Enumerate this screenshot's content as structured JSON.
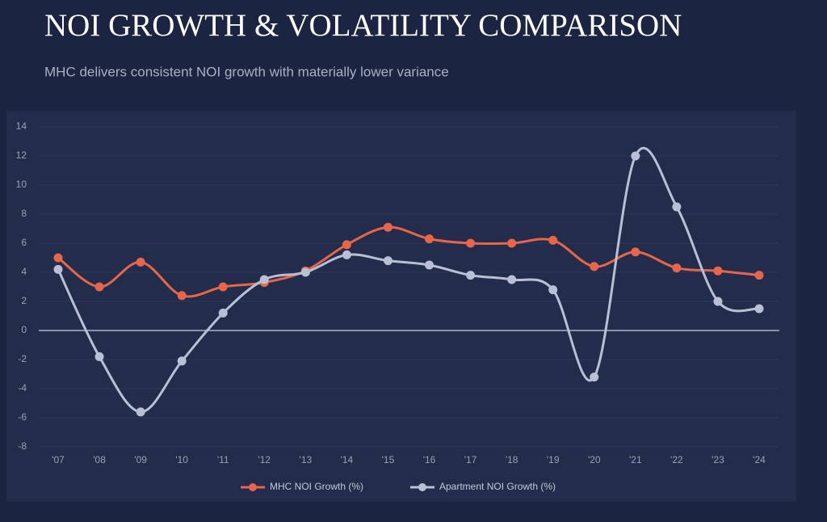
{
  "chart_data": {
    "type": "line",
    "title": "NOI GROWTH & VOLATILITY COMPARISON",
    "subtitle": "MHC delivers consistent NOI growth with materially lower variance",
    "categories": [
      "'07",
      "'08",
      "'09",
      "'10",
      "'11",
      "'12",
      "'13",
      "'14",
      "'15",
      "'16",
      "'17",
      "'18",
      "'19",
      "'20",
      "'21",
      "'22",
      "'23",
      "'24"
    ],
    "series": [
      {
        "name": "MHC NOI Growth (%)",
        "color": "#e8654a",
        "values": [
          5.0,
          3.0,
          4.7,
          2.4,
          3.0,
          3.3,
          4.1,
          5.9,
          7.1,
          6.3,
          6.0,
          6.0,
          6.2,
          4.4,
          5.4,
          4.3,
          4.1,
          3.8
        ]
      },
      {
        "name": "Apartment NOI Growth (%)",
        "color": "#b9c0d6",
        "values": [
          4.2,
          -1.8,
          -5.6,
          -2.1,
          1.2,
          3.5,
          4.0,
          5.2,
          4.8,
          4.5,
          3.8,
          3.5,
          2.8,
          -3.2,
          12.0,
          8.5,
          2.0,
          1.5
        ]
      }
    ],
    "ylim": [
      -8,
      14
    ],
    "yticks": [
      -8,
      -6,
      -4,
      -2,
      0,
      2,
      4,
      6,
      8,
      10,
      12,
      14
    ],
    "grid": true
  }
}
